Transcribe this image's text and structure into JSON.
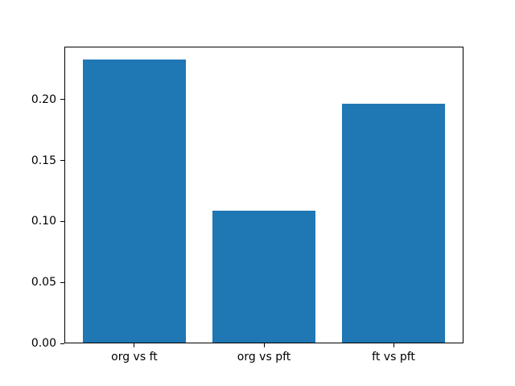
{
  "chart_data": {
    "type": "bar",
    "categories": [
      "org vs ft",
      "org vs pft",
      "ft vs pft"
    ],
    "values": [
      0.232,
      0.108,
      0.196
    ],
    "title": "",
    "xlabel": "",
    "ylabel": "",
    "ylim": [
      0,
      0.2436
    ],
    "xlim": [
      -0.54,
      2.54
    ],
    "bar_positions": [
      0,
      1,
      2
    ],
    "bar_width": 0.8,
    "yticks": [
      0.0,
      0.05,
      0.1,
      0.15,
      0.2
    ],
    "ytick_labels": [
      "0.00",
      "0.05",
      "0.10",
      "0.15",
      "0.20"
    ],
    "grid": false,
    "legend": false,
    "bar_color": "#1f77b4",
    "spine_color": "#000000",
    "background_color": "#ffffff"
  }
}
